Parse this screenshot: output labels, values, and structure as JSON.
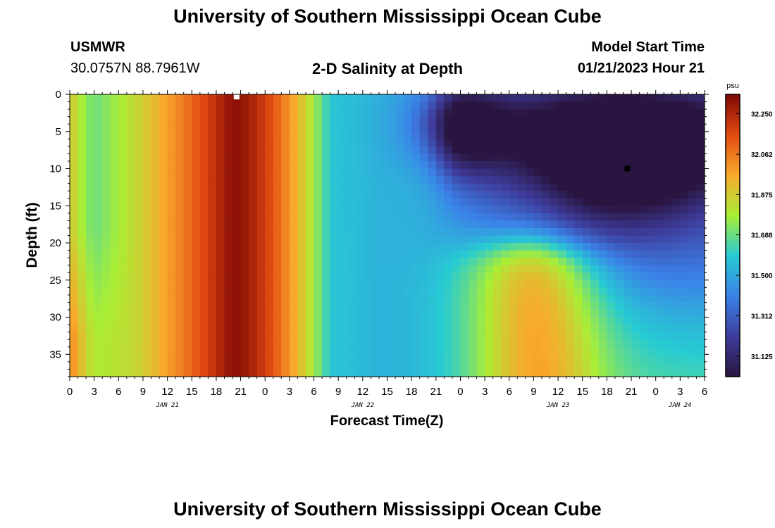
{
  "page": {
    "title_top": "University of Southern Mississippi Ocean Cube",
    "title_bottom": "University of Southern Mississippi Ocean Cube",
    "station_code": "USMWR",
    "station_coords": "30.0757N  88.7961W",
    "plot_title": "2-D Salinity at Depth",
    "model_start_label": "Model Start Time",
    "model_start_value": "01/21/2023 Hour 21"
  },
  "chart_data": {
    "type": "heatmap",
    "title": "2-D Salinity at Depth",
    "xlabel": "Forecast Time(Z)",
    "ylabel": "Depth (ft)",
    "x_hours_range": [
      0,
      78
    ],
    "y_range": [
      0,
      38
    ],
    "y_inverted": true,
    "x_tick_labels": [
      "0",
      "3",
      "6",
      "9",
      "12",
      "15",
      "18",
      "21",
      "0",
      "3",
      "6",
      "9",
      "12",
      "15",
      "18",
      "21",
      "0",
      "3",
      "6",
      "9",
      "12",
      "15",
      "18",
      "21",
      "0",
      "3",
      "6"
    ],
    "y_tick_labels": [
      "0",
      "5",
      "10",
      "15",
      "20",
      "25",
      "30",
      "35"
    ],
    "date_labels": [
      {
        "text": "JAN 21",
        "hour": 12
      },
      {
        "text": "JAN 22",
        "hour": 36
      },
      {
        "text": "JAN 23",
        "hour": 60
      },
      {
        "text": "JAN 24",
        "hour": 75
      }
    ],
    "colorbar": {
      "unit": "psu",
      "min": 31.03,
      "max": 32.34,
      "tick_values": [
        32.25,
        32.062,
        31.875,
        31.688,
        31.5,
        31.312,
        31.125
      ],
      "tick_labels": [
        "32.250",
        "32.062",
        "31.875",
        "31.688",
        "31.500",
        "31.312",
        "31.125"
      ],
      "colors": [
        "#2a1540",
        "#3e3d9c",
        "#3b82e8",
        "#27cbd3",
        "#a9ee36",
        "#f8aa2c",
        "#e34a12",
        "#7d0704"
      ]
    },
    "markers": [
      {
        "name": "max-salinity-marker",
        "hour": 20.5,
        "depth": 0.3,
        "color": "#ffffff"
      },
      {
        "name": "min-salinity-marker",
        "hour": 68.5,
        "depth": 10,
        "color": "#000000"
      }
    ],
    "features": [
      {
        "kind": "max",
        "hour": 20,
        "depth_range": [
          0,
          38
        ],
        "value": 32.34
      },
      {
        "kind": "min",
        "hour": 68,
        "depth": 10,
        "value": 31.04
      },
      {
        "kind": "min",
        "hour": 47,
        "depth": 4,
        "value": 31.15
      }
    ]
  }
}
